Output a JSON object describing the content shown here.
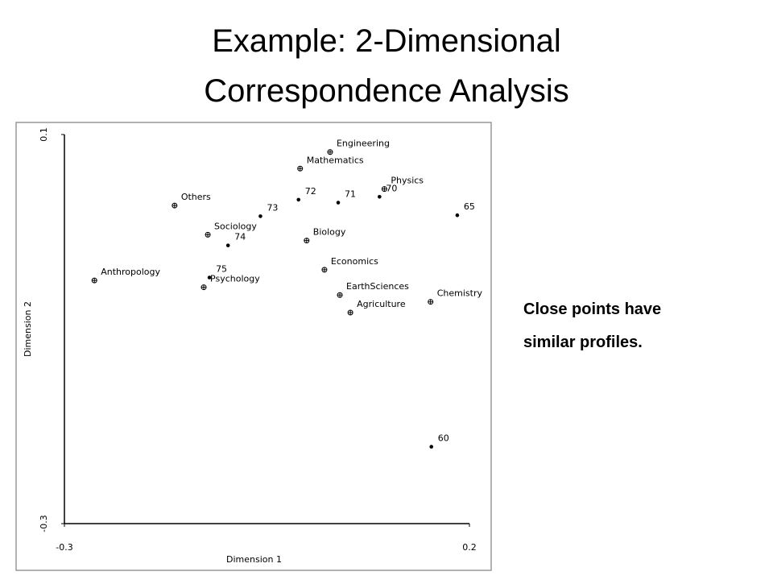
{
  "slide": {
    "title": [
      "Example: 2-Dimensional",
      "Correspondence Analysis"
    ],
    "note": [
      "Close points have",
      "similar profiles."
    ]
  },
  "chart_data": {
    "type": "scatter",
    "x_label": "Dimension 1",
    "y_label": "Dimension 2",
    "xlim": [
      -0.3,
      0.2
    ],
    "xticks": [
      -0.3,
      0.2
    ],
    "ylim": [
      -0.3,
      0.1
    ],
    "yticks": [
      -0.3,
      0.1
    ],
    "color": "#000000",
    "labels": [
      "Engineering",
      "Mathematics",
      "Physics",
      "70",
      "72",
      "71",
      "65",
      "Others",
      "73",
      "Sociology",
      "74",
      "Biology",
      "Economics",
      "Anthropology",
      "75",
      "Psychology",
      "EarthSciences",
      "Agriculture",
      "Chemistry",
      "60"
    ],
    "x": [
      0.028,
      -0.009,
      0.095,
      0.089,
      -0.011,
      0.038,
      0.185,
      -0.164,
      -0.058,
      -0.123,
      -0.098,
      -0.001,
      0.021,
      -0.263,
      -0.121,
      -0.128,
      0.04,
      0.053,
      0.152,
      0.153
    ],
    "y": [
      0.082,
      0.065,
      0.044,
      0.036,
      0.033,
      0.03,
      0.017,
      0.027,
      0.016,
      -0.003,
      -0.014,
      -0.009,
      -0.039,
      -0.05,
      -0.047,
      -0.057,
      -0.065,
      -0.083,
      -0.072,
      -0.221
    ],
    "markers": [
      "circle-plus",
      "circle-plus",
      "circle-plus",
      "dot",
      "dot",
      "dot",
      "dot",
      "circle-plus",
      "dot",
      "circle-plus",
      "dot",
      "circle-plus",
      "circle-plus",
      "circle-plus",
      "dot",
      "circle-plus",
      "circle-plus",
      "circle-plus",
      "circle-plus",
      "dot"
    ]
  }
}
